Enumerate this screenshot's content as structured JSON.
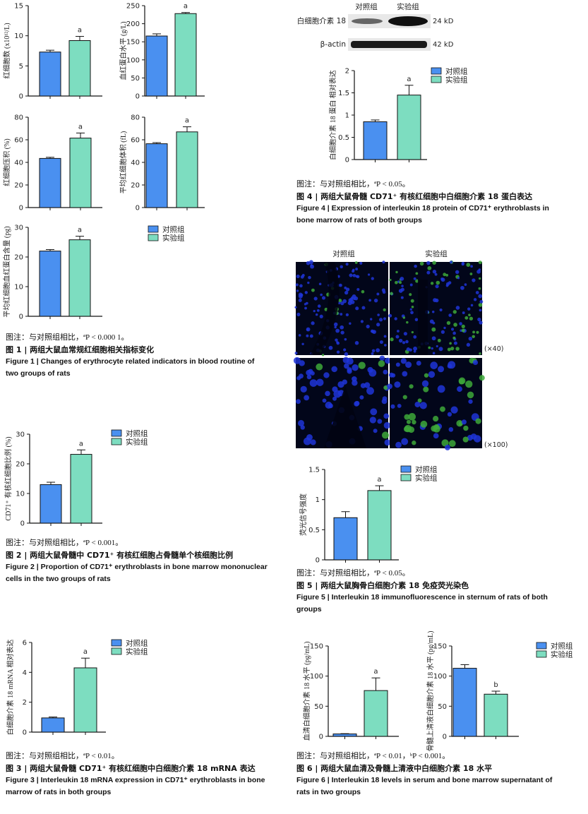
{
  "colors": {
    "control": "#4a90f0",
    "experiment": "#7dddc0"
  },
  "legend_labels": {
    "control": "对照组",
    "experiment": "实验组"
  },
  "chart_data": [
    {
      "id": "fig1a",
      "type": "bar",
      "categories": [
        "对照组",
        "实验组"
      ],
      "values": [
        7.3,
        9.2
      ],
      "errors": [
        0.3,
        0.7
      ],
      "sig": [
        "",
        "a"
      ],
      "ylabel": "红细胞数 (x10¹²/L)",
      "ylim": [
        0,
        15
      ],
      "yticks": [
        0,
        5,
        10,
        15
      ]
    },
    {
      "id": "fig1b",
      "type": "bar",
      "categories": [
        "对照组",
        "实验组"
      ],
      "values": [
        166,
        228
      ],
      "errors": [
        6,
        3
      ],
      "sig": [
        "",
        "a"
      ],
      "ylabel": "血红蛋白水平 (g/L)",
      "ylim": [
        0,
        250
      ],
      "yticks": [
        0,
        50,
        100,
        150,
        200,
        250
      ]
    },
    {
      "id": "fig1c",
      "type": "bar",
      "categories": [
        "对照组",
        "实验组"
      ],
      "values": [
        43.5,
        61.5
      ],
      "errors": [
        1,
        4.5
      ],
      "sig": [
        "",
        "a"
      ],
      "ylabel": "红细胞压积 (%)",
      "ylim": [
        0,
        80
      ],
      "yticks": [
        0,
        20,
        40,
        60,
        80
      ]
    },
    {
      "id": "fig1d",
      "type": "bar",
      "categories": [
        "对照组",
        "实验组"
      ],
      "values": [
        56.5,
        67
      ],
      "errors": [
        1,
        4.5
      ],
      "sig": [
        "",
        "a"
      ],
      "ylabel": "平均红细胞体积 (fL)",
      "ylim": [
        0,
        80
      ],
      "yticks": [
        0,
        20,
        40,
        60,
        80
      ]
    },
    {
      "id": "fig1e",
      "type": "bar",
      "categories": [
        "对照组",
        "实验组"
      ],
      "values": [
        22,
        25.8
      ],
      "errors": [
        0.5,
        1.2
      ],
      "sig": [
        "",
        "a"
      ],
      "ylabel": "平均红细胞血红蛋白含量 (pg)",
      "ylim": [
        0,
        30
      ],
      "yticks": [
        0,
        10,
        20,
        30
      ]
    },
    {
      "id": "fig2",
      "type": "bar",
      "categories": [
        "对照组",
        "实验组"
      ],
      "values": [
        13,
        23.2
      ],
      "errors": [
        0.8,
        1.5
      ],
      "sig": [
        "",
        "a"
      ],
      "ylabel": "CD71⁺ 有核红细胞比例 (%)",
      "ylim": [
        0,
        30
      ],
      "yticks": [
        0,
        10,
        20,
        30
      ]
    },
    {
      "id": "fig3",
      "type": "bar",
      "categories": [
        "对照组",
        "实验组"
      ],
      "values": [
        0.95,
        4.3
      ],
      "errors": [
        0.06,
        0.65
      ],
      "sig": [
        "",
        "a"
      ],
      "ylabel": "白细胞介素 18 mRNA 相对表达",
      "ylim": [
        0,
        6
      ],
      "yticks": [
        0,
        2,
        4,
        6
      ]
    },
    {
      "id": "fig4",
      "type": "bar",
      "categories": [
        "对照组",
        "实验组"
      ],
      "values": [
        0.85,
        1.45
      ],
      "errors": [
        0.04,
        0.22
      ],
      "sig": [
        "",
        "a"
      ],
      "ylabel": "白细胞介素 18 蛋白 相对表达",
      "ylim": [
        0,
        2
      ],
      "yticks": [
        0,
        0.5,
        1.0,
        1.5,
        2.0
      ]
    },
    {
      "id": "fig5",
      "type": "bar",
      "categories": [
        "对照组",
        "实验组"
      ],
      "values": [
        0.7,
        1.15
      ],
      "errors": [
        0.1,
        0.08
      ],
      "sig": [
        "",
        "a"
      ],
      "ylabel": "荧光信号强度",
      "ylim": [
        0,
        1.5
      ],
      "yticks": [
        0,
        0.5,
        1.0,
        1.5
      ]
    },
    {
      "id": "fig6a",
      "type": "bar",
      "categories": [
        "对照组",
        "实验组"
      ],
      "values": [
        4,
        76
      ],
      "errors": [
        0.5,
        21
      ],
      "sig": [
        "",
        "a"
      ],
      "ylabel": "血清白细胞介素 18 水平 (pg/mL)",
      "ylim": [
        0,
        150
      ],
      "yticks": [
        0,
        50,
        100,
        150
      ]
    },
    {
      "id": "fig6b",
      "type": "bar",
      "categories": [
        "对照组",
        "实验组"
      ],
      "values": [
        113,
        70
      ],
      "errors": [
        6,
        5
      ],
      "sig": [
        "",
        "b"
      ],
      "ylabel": "骨髓上清液白细胞介素 18 水平 (pg/mL)",
      "ylim": [
        0,
        150
      ],
      "yticks": [
        0,
        50,
        100,
        150
      ]
    }
  ],
  "western_blot": {
    "labels": [
      "白细胞介素 18",
      "β-actin"
    ],
    "sizes": [
      "24 kD",
      "42 kD"
    ],
    "lanes": [
      "对照组",
      "实验组"
    ]
  },
  "if_images": {
    "cols": [
      "对照组",
      "实验组"
    ],
    "mags": [
      "(×40)",
      "(×100)"
    ]
  },
  "captions": {
    "fig1": {
      "note": "图注：与对照组相比，ªP < 0.000 1。",
      "cn": "图 1 | 两组大鼠血常规红细胞相关指标变化",
      "en1": "Figure 1 | Changes of erythrocyte related indicators in blood routine of",
      "en2": "two groups of rats"
    },
    "fig2": {
      "note": "图注：与对照组相比，ªP < 0.001。",
      "cn": "图 2 | 两组大鼠骨髓中 CD71⁺ 有核红细胞占骨髓单个核细胞比例",
      "en1": "Figure 2 | Proportion of CD71⁺ erythroblasts in bone marrow mononuclear",
      "en2": "cells in the two groups of rats"
    },
    "fig3": {
      "note": "图注：与对照组相比，ªP < 0.01。",
      "cn": "图 3 | 两组大鼠骨髓 CD71⁺ 有核红细胞中白细胞介素 18 mRNA 表达",
      "en1": "Figure 3 | Interleukin 18 mRNA expression in CD71⁺ erythroblasts in bone",
      "en2": "marrow of rats in both groups"
    },
    "fig4": {
      "note": "图注：与对照组相比，ªP < 0.05。",
      "cn": "图 4 | 两组大鼠骨髓 CD71⁺ 有核红细胞中白细胞介素 18 蛋白表达",
      "en1": "Figure 4 | Expression of interleukin 18 protein of CD71⁺ erythroblasts in",
      "en2": "bone marrow of rats of both groups"
    },
    "fig5": {
      "note": "图注：与对照组相比，ªP < 0.05。",
      "cn": "图 5 | 两组大鼠胸骨白细胞介素 18 免疫荧光染色",
      "en1": "Figure 5 | Interleukin 18 immunofluorescence in sternum of rats of both",
      "en2": "groups"
    },
    "fig6": {
      "note": "图注：与对照组相比，ªP < 0.01，ᵇP < 0.001。",
      "cn": "图 6 | 两组大鼠血清及骨髓上清液中白细胞介素 18 水平",
      "en1": "Figure 6 | Interleukin 18 levels in serum and bone marrow supernatant of",
      "en2": "rats in two groups"
    }
  }
}
